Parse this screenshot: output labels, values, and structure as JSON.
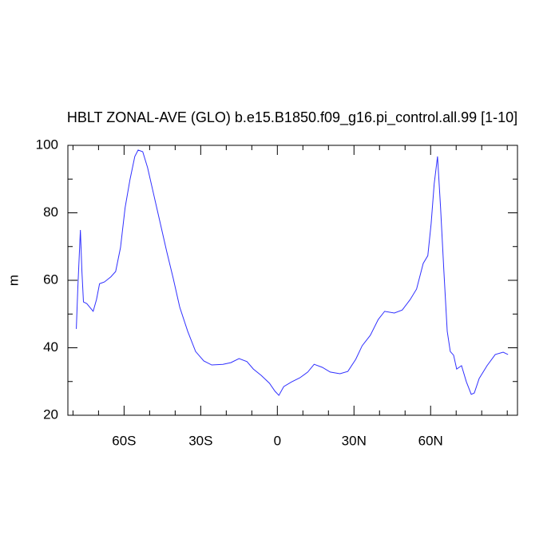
{
  "chart_data": {
    "type": "line",
    "title": "HBLT ZONAL-AVE (GLO) b.e15.B1850.f09_g16.pi_control.all.99 [1-10]",
    "y_label": "m",
    "x": [
      -78.7,
      -78.1,
      -77.1,
      -76.5,
      -75.9,
      -74.6,
      -73.4,
      -72.1,
      -70.8,
      -69.6,
      -67.7,
      -65.2,
      -63.3,
      -61.4,
      -59.6,
      -57.7,
      -55.8,
      -54.5,
      -52.7,
      -50.8,
      -48.3,
      -45.8,
      -43.3,
      -40.8,
      -38.2,
      -35.1,
      -32,
      -28.8,
      -25.7,
      -21.3,
      -18.2,
      -15,
      -11.9,
      -9.4,
      -6.3,
      -3.1,
      -0.9,
      0.6,
      2.5,
      5.6,
      8.8,
      11.9,
      14.4,
      17.6,
      20.7,
      24.5,
      27.6,
      30.7,
      33.2,
      36.4,
      39.5,
      42,
      45.8,
      48.9,
      52,
      54.5,
      57.1,
      58.9,
      60.2,
      61.4,
      62.7,
      63.9,
      65.2,
      66.5,
      67.7,
      69,
      70.2,
      72.1,
      74,
      75.9,
      77.1,
      79,
      82.1,
      85.3,
      88.4,
      90.3
    ],
    "series": [
      {
        "color": "#3030ff",
        "values": [
          45.6,
          57.9,
          74.9,
          62.6,
          53.6,
          53.1,
          52,
          50.8,
          54.3,
          59,
          59.5,
          61,
          62.6,
          69.7,
          81.5,
          89.8,
          96.7,
          98.6,
          98.1,
          93.4,
          85.1,
          76.8,
          68.5,
          60.7,
          52,
          44.9,
          38.9,
          36.1,
          34.9,
          35.1,
          35.6,
          36.8,
          35.9,
          33.7,
          31.8,
          29.5,
          27.1,
          25.9,
          28.5,
          29.9,
          31.1,
          32.8,
          35.1,
          34.2,
          32.8,
          32.3,
          33,
          36.6,
          40.6,
          43.7,
          48.4,
          50.8,
          50.3,
          51.2,
          54.3,
          57.4,
          65,
          67.3,
          76.8,
          88.6,
          96.7,
          81.5,
          62.6,
          44.9,
          38.9,
          37.8,
          33.7,
          34.7,
          29.9,
          26.2,
          26.6,
          30.9,
          34.7,
          38,
          38.7,
          38
        ]
      }
    ],
    "xlim": [
      -82,
      94
    ],
    "xticks": [
      {
        "value": -60,
        "label": "60S"
      },
      {
        "value": -30,
        "label": "30S"
      },
      0,
      {
        "value": 30,
        "label": "30N"
      },
      {
        "value": 60,
        "label": "60N"
      }
    ],
    "xminor": [
      -80,
      -70,
      -50,
      -40,
      -20,
      -10,
      10,
      20,
      40,
      50,
      70,
      80,
      90
    ],
    "ylim": [
      20,
      100
    ],
    "yticks": [
      20,
      40,
      60,
      80,
      100
    ],
    "yminor": [
      30,
      50,
      70,
      90
    ]
  }
}
